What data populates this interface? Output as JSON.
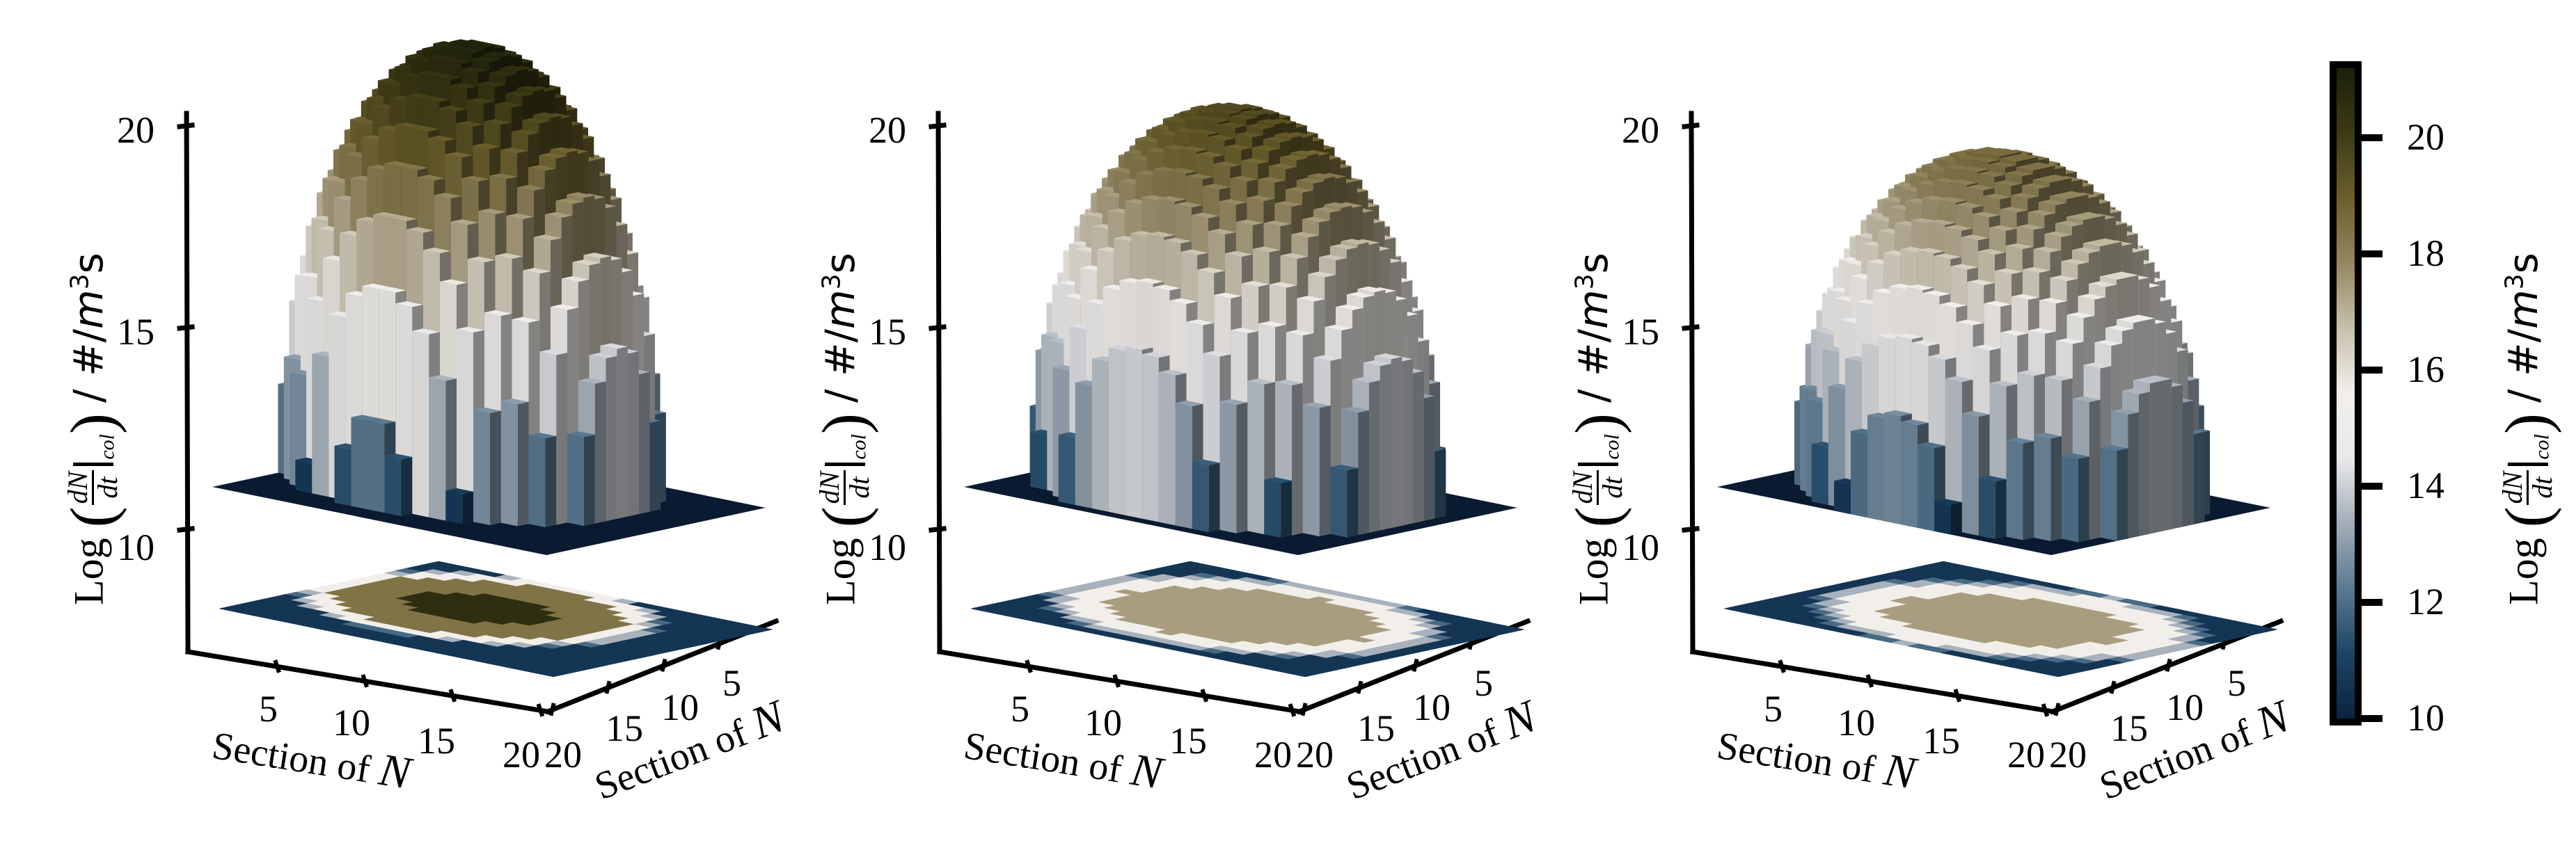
{
  "figure": {
    "panel_count": 3,
    "axis_label_z": {
      "prefix": "Log",
      "frac_num": "dN",
      "frac_den": "dt",
      "subscript": "col",
      "unit_hash": "#/",
      "unit_m": "m",
      "unit_exp": "3",
      "unit_s": "s"
    },
    "axis_label_x": {
      "text": "Section of ",
      "var": "N"
    },
    "axis_label_y": {
      "text": "Section of ",
      "var": "N"
    },
    "z_ticks": [
      "10",
      "15",
      "20"
    ],
    "x_ticks": [
      "5",
      "10",
      "15",
      "20"
    ],
    "y_ticks": [
      "5",
      "10",
      "15",
      "20"
    ]
  },
  "colorbar": {
    "ticks": [
      "10",
      "12",
      "14",
      "16",
      "18",
      "20"
    ],
    "range": [
      10,
      21.2
    ],
    "label_prefix": "Log",
    "colormap_stops": [
      "#0b2340",
      "#1b4565",
      "#5a7a92",
      "#a3adb8",
      "#e9e9ea",
      "#f2efeb",
      "#c8c0ac",
      "#948760",
      "#6b5f2c",
      "#3d3a14",
      "#1c200b"
    ]
  },
  "chart_data": [
    {
      "type": "3d-bar+contour",
      "title": "",
      "xlabel": "Section of N",
      "ylabel": "Section of N",
      "zlabel": "Log(dN/dt|col) / #/m^3 s",
      "grid": [
        20,
        20
      ],
      "zlim": [
        10,
        21.2
      ],
      "z_ticks": [
        10,
        15,
        20
      ],
      "x_ticks": [
        5,
        10,
        15,
        20
      ],
      "y_ticks": [
        5,
        10,
        15,
        20
      ],
      "peak": 21.0,
      "base": 10.0,
      "radius": 9.2,
      "center": [
        8.5,
        8.0
      ],
      "contour_levels": [
        10,
        11.2,
        12.6,
        14.3,
        16.8,
        20.0
      ]
    },
    {
      "type": "3d-bar+contour",
      "title": "",
      "xlabel": "Section of N",
      "ylabel": "Section of N",
      "zlabel": "Log(dN/dt|col) / #/m^3 s",
      "grid": [
        20,
        20
      ],
      "zlim": [
        10,
        21.2
      ],
      "z_ticks": [
        10,
        15,
        20
      ],
      "x_ticks": [
        5,
        10,
        15,
        20
      ],
      "y_ticks": [
        5,
        10,
        15,
        20
      ],
      "peak": 19.6,
      "base": 10.0,
      "radius": 10.0,
      "center": [
        9.5,
        9.5
      ],
      "contour_levels": [
        10,
        11.2,
        12.6,
        14.3,
        16.8
      ]
    },
    {
      "type": "3d-bar+contour",
      "title": "",
      "xlabel": "Section of N",
      "ylabel": "Section of N",
      "zlabel": "Log(dN/dt|col) / #/m^3 s",
      "grid": [
        20,
        20
      ],
      "zlim": [
        10,
        21.2
      ],
      "z_ticks": [
        10,
        15,
        20
      ],
      "x_ticks": [
        5,
        10,
        15,
        20
      ],
      "y_ticks": [
        5,
        10,
        15,
        20
      ],
      "peak": 18.6,
      "base": 10.0,
      "radius": 10.0,
      "center": [
        10.0,
        10.5
      ],
      "contour_levels": [
        10,
        11.2,
        12.6,
        14.3,
        16.8
      ]
    }
  ]
}
